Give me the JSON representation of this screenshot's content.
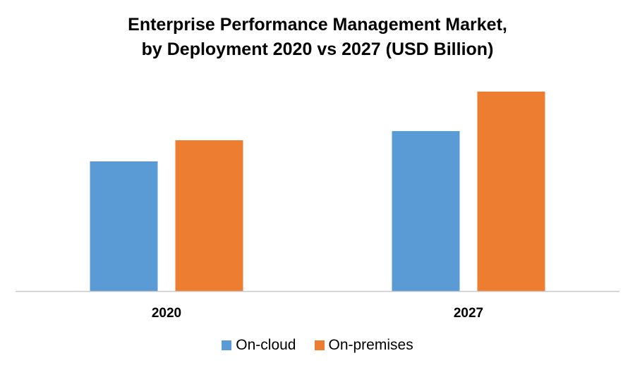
{
  "chart_data": {
    "type": "bar",
    "title": "Enterprise Performance Management Market,",
    "subtitle": "by Deployment 2020 vs 2027 (USD Billion)",
    "xlabel": "",
    "ylabel": "",
    "categories": [
      "2020",
      "2027"
    ],
    "series": [
      {
        "name": "On-cloud",
        "color": "#5B9BD5",
        "values": [
          184,
          227
        ]
      },
      {
        "name": "On-premises",
        "color": "#ED7D31",
        "values": [
          214,
          283
        ]
      }
    ],
    "ylim": [
      0,
      300
    ],
    "value_axis_shown": false,
    "values_note": "relative heights only; no value axis printed",
    "grid": false,
    "legend_position": "bottom"
  }
}
